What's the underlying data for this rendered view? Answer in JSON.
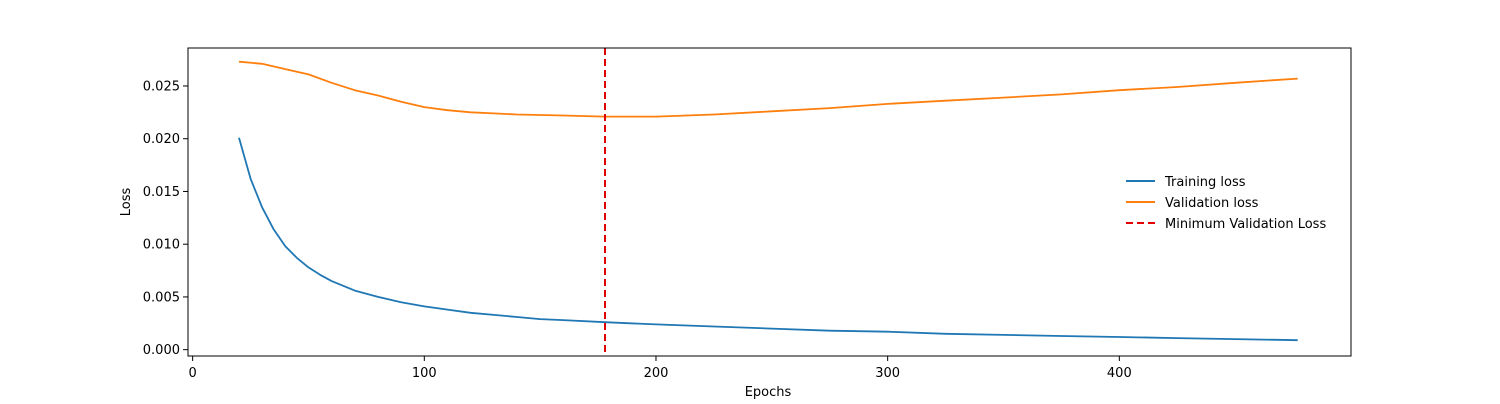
{
  "chart_data": {
    "type": "line",
    "title": "",
    "xlabel": "Epochs",
    "ylabel": "Loss",
    "xlim": [
      -2,
      500
    ],
    "ylim": [
      -0.0006,
      0.0286
    ],
    "xticks": [
      0,
      100,
      200,
      300,
      400
    ],
    "xtick_labels": [
      "0",
      "100",
      "200",
      "300",
      "400"
    ],
    "yticks": [
      0.0,
      0.005,
      0.01,
      0.015,
      0.02,
      0.025
    ],
    "ytick_labels": [
      "0.000",
      "0.005",
      "0.010",
      "0.015",
      "0.020",
      "0.025"
    ],
    "grid": false,
    "legend_position": "center-right",
    "series": [
      {
        "name": "Training loss",
        "color": "#1f77b4",
        "style": "solid",
        "x": [
          20,
          25,
          30,
          35,
          40,
          45,
          50,
          55,
          60,
          70,
          80,
          90,
          100,
          110,
          120,
          130,
          140,
          150,
          160,
          178,
          200,
          225,
          250,
          275,
          300,
          325,
          350,
          375,
          400,
          425,
          450,
          477
        ],
        "y": [
          0.0201,
          0.0162,
          0.0135,
          0.0114,
          0.0098,
          0.0087,
          0.0078,
          0.0071,
          0.0065,
          0.0056,
          0.005,
          0.0045,
          0.0041,
          0.0038,
          0.0035,
          0.0033,
          0.0031,
          0.0029,
          0.0028,
          0.0026,
          0.0024,
          0.0022,
          0.002,
          0.0018,
          0.0017,
          0.0015,
          0.0014,
          0.0013,
          0.0012,
          0.0011,
          0.001,
          0.0009
        ]
      },
      {
        "name": "Validation loss",
        "color": "#ff7f0e",
        "style": "solid",
        "x": [
          20,
          30,
          40,
          50,
          60,
          70,
          80,
          90,
          100,
          110,
          120,
          130,
          140,
          150,
          160,
          178,
          200,
          225,
          250,
          275,
          300,
          325,
          350,
          375,
          400,
          425,
          450,
          477
        ],
        "y": [
          0.0273,
          0.0271,
          0.0266,
          0.0261,
          0.0253,
          0.0246,
          0.0241,
          0.0235,
          0.023,
          0.0227,
          0.0225,
          0.0224,
          0.0223,
          0.02225,
          0.0222,
          0.0221,
          0.0221,
          0.0223,
          0.0226,
          0.0229,
          0.0233,
          0.0236,
          0.0239,
          0.0242,
          0.0246,
          0.0249,
          0.0253,
          0.0257
        ]
      },
      {
        "name": "Minimum Validation Loss",
        "color": "#e00000",
        "style": "dashed",
        "vline_x": 178
      }
    ]
  }
}
